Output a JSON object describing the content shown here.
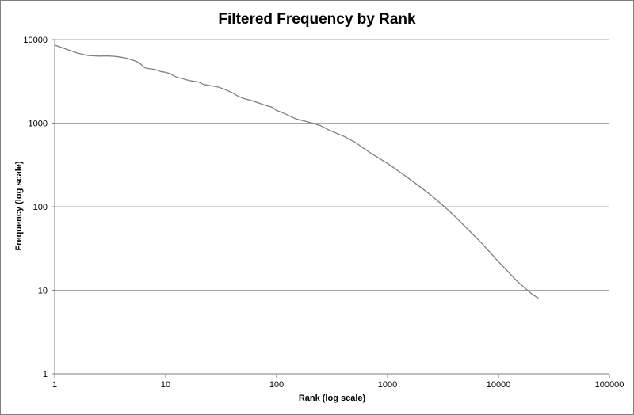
{
  "chart_data": {
    "type": "line",
    "title": "Filtered Frequency by Rank",
    "xlabel": "Rank (log scale)",
    "ylabel": "Frequency (log scale)",
    "x_scale": "log",
    "y_scale": "log",
    "xlim": [
      1,
      100000
    ],
    "ylim": [
      1,
      10000
    ],
    "x_ticks": [
      "1",
      "10",
      "100",
      "1000",
      "10000",
      "100000"
    ],
    "y_ticks": [
      "1",
      "10",
      "100",
      "1000",
      "10000"
    ],
    "x_tick_values": [
      1,
      10,
      100,
      1000,
      10000,
      100000
    ],
    "y_tick_values": [
      1,
      10,
      100,
      1000,
      10000
    ],
    "grid": "horizontal",
    "legend": "none",
    "line_color": "#7f7f7f",
    "gridline_color": "#a6a6a6",
    "axis_color": "#7f7f7f",
    "series": [
      {
        "x": [
          1,
          1.3,
          1.6,
          2,
          2.5,
          3,
          3.5,
          4,
          4.5,
          5,
          5.5,
          6,
          6.5,
          7,
          8,
          9,
          10,
          11,
          12,
          13,
          14,
          15,
          17,
          20,
          22,
          25,
          30,
          35,
          40,
          45,
          50,
          60,
          70,
          80,
          90,
          100,
          120,
          150,
          200,
          250,
          300,
          400,
          500,
          700,
          1000,
          1500,
          2000,
          2500,
          3000,
          4000,
          5000,
          7000,
          10000,
          15000,
          20000,
          23000
        ],
        "y": [
          8600,
          7600,
          6900,
          6450,
          6350,
          6380,
          6300,
          6150,
          5950,
          5700,
          5450,
          5050,
          4600,
          4500,
          4400,
          4150,
          4050,
          3900,
          3650,
          3500,
          3450,
          3330,
          3200,
          3100,
          2900,
          2820,
          2700,
          2500,
          2300,
          2100,
          1980,
          1860,
          1730,
          1630,
          1560,
          1420,
          1290,
          1120,
          1020,
          930,
          820,
          700,
          600,
          440,
          330,
          225,
          170,
          135,
          110,
          78,
          58,
          37,
          22,
          12.5,
          9,
          8
        ]
      }
    ]
  }
}
